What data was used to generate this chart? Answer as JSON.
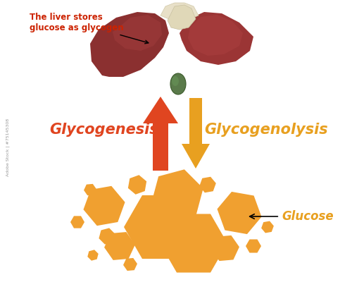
{
  "bg_color": "#ffffff",
  "liver_left_color": "#8B3030",
  "liver_right_color": "#9B3535",
  "liver_shadow": "#6B2020",
  "liver_connector_color": "#D4C8A0",
  "gallbladder_color": "#5A7A4A",
  "arrow_up_color": "#E04520",
  "arrow_down_color": "#E8A020",
  "glucose_color": "#F0A030",
  "glucose_dark": "#D08820",
  "label_glycogenesis_color": "#E04520",
  "label_glycogenolysis_color": "#E8A020",
  "label_glucose_color": "#E8A020",
  "liver_annotation_color": "#CC2200",
  "stockid_text": "75145308",
  "glycogenesis_text": "Glycogenesis",
  "glycogenolysis_text": "Glycogenolysis",
  "glucose_text": "Glucose",
  "liver_annotation": "The liver stores\nglucose as glycogen"
}
